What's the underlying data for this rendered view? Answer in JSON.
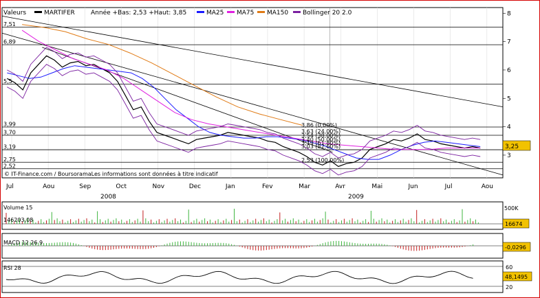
{
  "header": {
    "label_values": "Valeurs",
    "ticker": "MARTIFER",
    "range_text": "Année +Bas: 2,53 +Haut: 3,85",
    "legend": [
      {
        "name": "MA25",
        "color": "#1a1aff"
      },
      {
        "name": "MA75",
        "color": "#e01fe0"
      },
      {
        "name": "MA150",
        "color": "#e07a14"
      },
      {
        "name": "Bollinger 20 2.0",
        "color": "#7a1fa0"
      }
    ],
    "ticker_color": "#000000"
  },
  "footer_credit": "© IT-Finance.com / BoursoramaLes informations sont données à titre indicatif",
  "chart_data": [
    {
      "type": "line",
      "name": "price",
      "y_ticks": [
        "3",
        "4",
        "5",
        "6",
        "7",
        "8"
      ],
      "ylim": [
        2.2,
        8.2
      ],
      "x_labels": [
        "Jul",
        "Aou",
        "Sep",
        "Oct",
        "Nov",
        "Dec",
        "Jan",
        "Fev",
        "Mar",
        "Avr",
        "Mai",
        "Jun",
        "Jul",
        "Aou"
      ],
      "year_labels": [
        "2008",
        "2009"
      ],
      "horizontal_levels": [
        {
          "label": "7,51",
          "value": 7.51
        },
        {
          "label": "6,89",
          "value": 6.89
        },
        {
          "label": "5,5",
          "value": 5.5
        },
        {
          "label": "3,99",
          "value": 3.99
        },
        {
          "label": "3,70",
          "value": 3.7
        },
        {
          "label": "3,19",
          "value": 3.19
        },
        {
          "label": "2,75",
          "value": 2.75
        },
        {
          "label": "2,52",
          "value": 2.52
        }
      ],
      "fib_labels": [
        "3,86 (0,00%)",
        "3,63 (24,00%)",
        "3,54 (38,00%)",
        "3,40 (50,00%)",
        "3,19 (61,80%)",
        "3,03 (82,60%)",
        "2,53 (100,00%)"
      ],
      "current_value": "3,25",
      "current_color": "#f2c200",
      "series": [
        {
          "name": "Price",
          "values": [
            5.7,
            5.55,
            5.3,
            5.9,
            6.2,
            6.5,
            6.35,
            6.1,
            6.25,
            6.3,
            6.15,
            6.2,
            6.05,
            5.9,
            5.6,
            5.1,
            4.6,
            4.7,
            4.2,
            3.8,
            3.7,
            3.6,
            3.5,
            3.4,
            3.55,
            3.6,
            3.65,
            3.7,
            3.8,
            3.75,
            3.7,
            3.65,
            3.6,
            3.5,
            3.45,
            3.3,
            3.2,
            3.1,
            2.95,
            2.75,
            2.65,
            2.8,
            2.6,
            2.7,
            2.75,
            2.9,
            3.2,
            3.3,
            3.4,
            3.55,
            3.5,
            3.6,
            3.75,
            3.55,
            3.5,
            3.4,
            3.35,
            3.3,
            3.25,
            3.3,
            3.25
          ]
        },
        {
          "name": "MA25",
          "values": [
            5.9,
            5.8,
            5.7,
            5.75,
            5.9,
            6.05,
            6.15,
            6.1,
            6.05,
            6.0,
            5.95,
            5.9,
            5.7,
            5.4,
            5.0,
            4.6,
            4.3,
            4.0,
            3.8,
            3.7,
            3.65,
            3.6,
            3.6,
            3.65,
            3.65,
            3.6,
            3.55,
            3.45,
            3.35,
            3.2,
            3.05,
            2.9,
            2.85,
            2.85,
            3.0,
            3.2,
            3.35,
            3.45,
            3.5,
            3.45,
            3.4,
            3.35,
            3.3
          ]
        },
        {
          "name": "MA75",
          "values": [
            7.4,
            7.0,
            6.7,
            6.4,
            6.2,
            6.0,
            5.7,
            5.3,
            4.9,
            4.5,
            4.25,
            4.1,
            4.0,
            3.9,
            3.8,
            3.7,
            3.6,
            3.5,
            3.4,
            3.35,
            3.3,
            3.25,
            3.2,
            3.2,
            3.2,
            3.25,
            3.25,
            3.25
          ]
        },
        {
          "name": "MA150",
          "values": [
            7.6,
            7.5,
            7.35,
            7.1,
            6.9,
            6.6,
            6.25,
            5.85,
            5.45,
            5.05,
            4.7,
            4.45,
            4.25,
            4.05
          ]
        }
      ],
      "trendlines": [
        {
          "from": [
            0,
            7.9
          ],
          "to": [
            1,
            4.7
          ]
        },
        {
          "from": [
            0,
            7.3
          ],
          "to": [
            1,
            2.3
          ]
        },
        {
          "from": [
            0.08,
            6.8
          ],
          "to": [
            0.66,
            3.1
          ]
        }
      ]
    },
    {
      "type": "bar",
      "name": "volume",
      "title": "Volume 15",
      "volume_label": "146203,08",
      "y_tick": "500K",
      "current_value": "16674",
      "current_color": "#f2c200"
    },
    {
      "type": "bar",
      "name": "macd",
      "title": "MACD 12 26 9",
      "current_value": "-0,0296",
      "current_color": "#f2c200"
    },
    {
      "type": "line",
      "name": "rsi",
      "title": "RSI 28",
      "y_ticks": [
        "60",
        "20"
      ],
      "current_value": "48,1495",
      "current_color": "#f2c200"
    }
  ]
}
